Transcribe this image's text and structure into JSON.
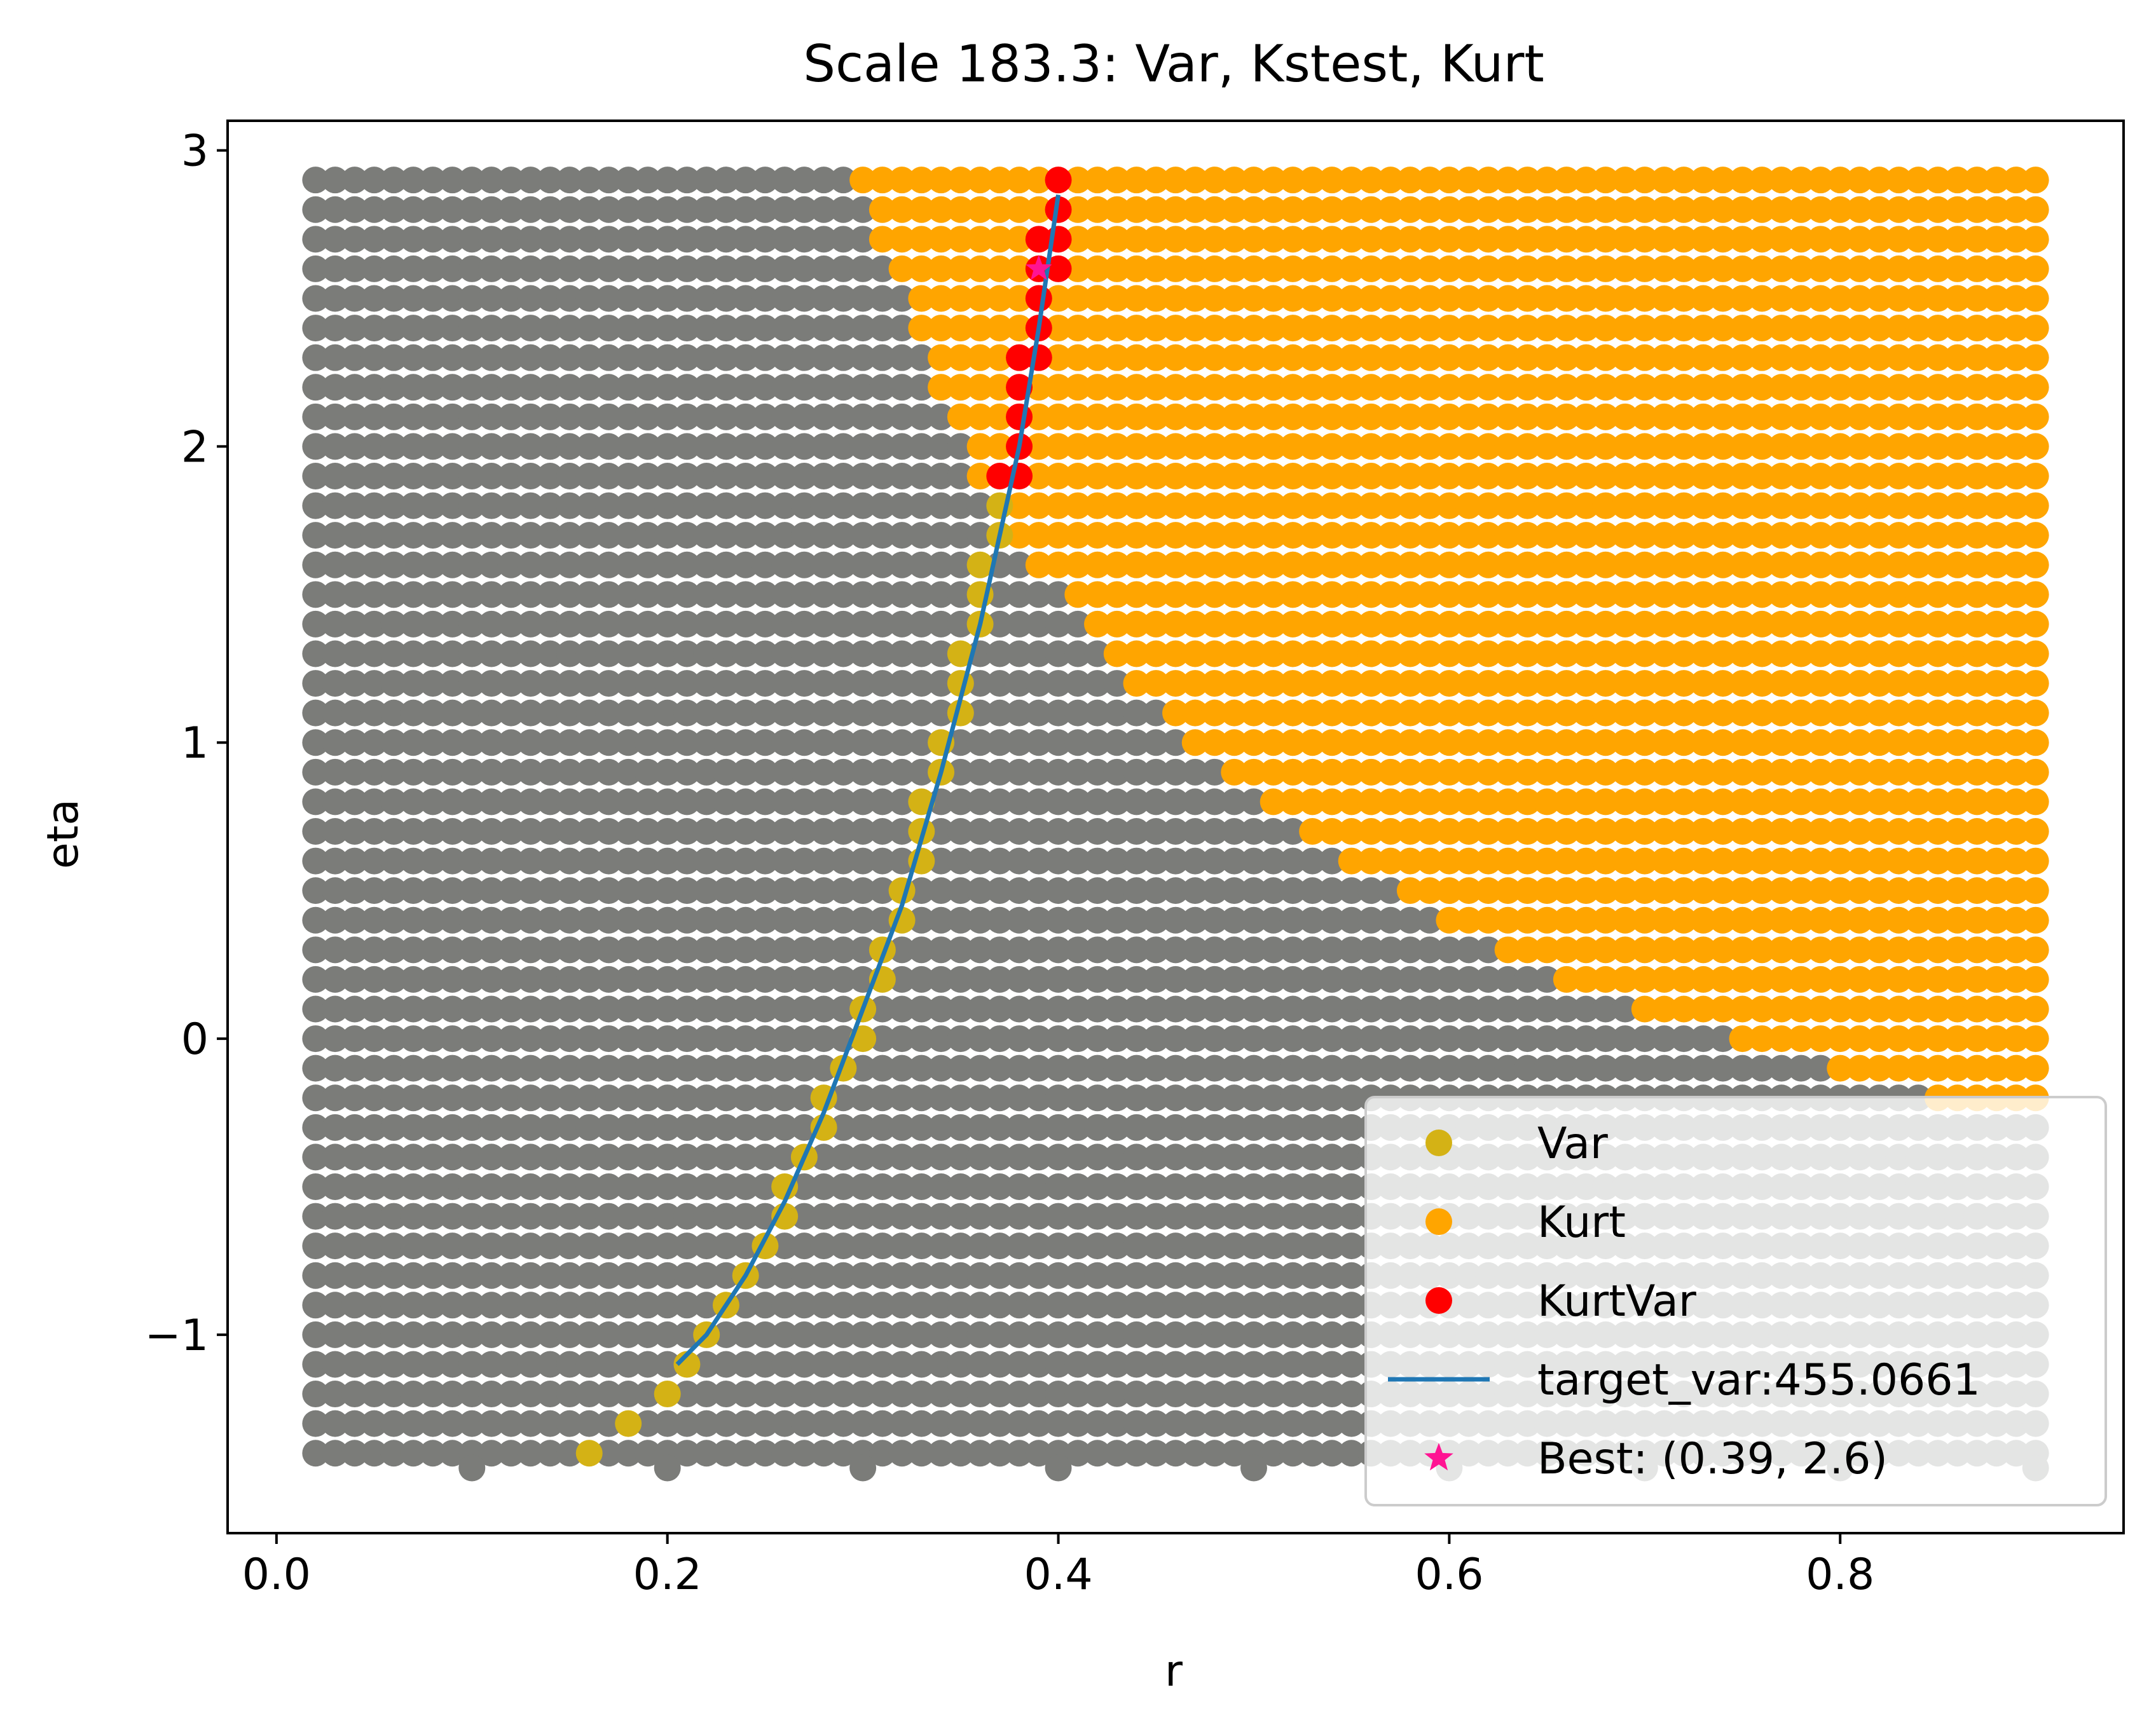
{
  "chart_data": {
    "type": "scatter",
    "title": "Scale 183.3: Var, Kstest, Kurt",
    "xlabel": "r",
    "ylabel": "eta",
    "xlim": [
      -0.025,
      0.945
    ],
    "ylim": [
      -1.67,
      3.1
    ],
    "xticks": [
      0.0,
      0.2,
      0.4,
      0.6,
      0.8
    ],
    "xtick_labels": [
      "0.0",
      "0.2",
      "0.4",
      "0.6",
      "0.8"
    ],
    "yticks": [
      -1,
      0,
      1,
      2,
      3
    ],
    "ytick_labels": [
      "−1",
      "0",
      "1",
      "2",
      "3"
    ],
    "grid": false,
    "legend_position": "bottom-right",
    "grid_points": {
      "r_min": 0.02,
      "r_max": 0.9,
      "r_step": 0.01,
      "eta_min": -1.4,
      "eta_max": 2.9,
      "eta_step": 0.1,
      "extra_bottom_row": {
        "eta": -1.45,
        "r": [
          0.1,
          0.2,
          0.3,
          0.4,
          0.5,
          0.6,
          0.7,
          0.8,
          0.9
        ]
      },
      "base_color": "#7b7c79"
    },
    "kurt_boundary": [
      [
        2.9,
        0.3
      ],
      [
        2.8,
        0.31
      ],
      [
        2.7,
        0.31
      ],
      [
        2.6,
        0.32
      ],
      [
        2.5,
        0.33
      ],
      [
        2.4,
        0.33
      ],
      [
        2.3,
        0.34
      ],
      [
        2.2,
        0.34
      ],
      [
        2.1,
        0.35
      ],
      [
        2.0,
        0.36
      ],
      [
        1.9,
        0.36
      ],
      [
        1.8,
        0.37
      ],
      [
        1.7,
        0.38
      ],
      [
        1.6,
        0.39
      ],
      [
        1.5,
        0.41
      ],
      [
        1.4,
        0.42
      ],
      [
        1.3,
        0.43
      ],
      [
        1.2,
        0.44
      ],
      [
        1.1,
        0.46
      ],
      [
        1.0,
        0.47
      ],
      [
        0.9,
        0.49
      ],
      [
        0.8,
        0.51
      ],
      [
        0.7,
        0.53
      ],
      [
        0.6,
        0.55
      ],
      [
        0.5,
        0.58
      ],
      [
        0.4,
        0.6
      ],
      [
        0.3,
        0.63
      ],
      [
        0.2,
        0.66
      ],
      [
        0.1,
        0.7
      ],
      [
        0.0,
        0.75
      ],
      [
        -0.1,
        0.8
      ],
      [
        -0.2,
        0.85
      ]
    ],
    "series": [
      {
        "name": "Var",
        "marker": "circle",
        "color": "#d4b215",
        "points": [
          [
            0.16,
            -1.4
          ],
          [
            0.18,
            -1.3
          ],
          [
            0.2,
            -1.2
          ],
          [
            0.21,
            -1.1
          ],
          [
            0.22,
            -1.0
          ],
          [
            0.23,
            -0.9
          ],
          [
            0.24,
            -0.8
          ],
          [
            0.25,
            -0.7
          ],
          [
            0.26,
            -0.6
          ],
          [
            0.26,
            -0.5
          ],
          [
            0.27,
            -0.4
          ],
          [
            0.28,
            -0.3
          ],
          [
            0.28,
            -0.2
          ],
          [
            0.29,
            -0.1
          ],
          [
            0.3,
            0.0
          ],
          [
            0.3,
            0.1
          ],
          [
            0.31,
            0.2
          ],
          [
            0.31,
            0.3
          ],
          [
            0.32,
            0.4
          ],
          [
            0.32,
            0.5
          ],
          [
            0.33,
            0.6
          ],
          [
            0.33,
            0.7
          ],
          [
            0.33,
            0.8
          ],
          [
            0.34,
            0.9
          ],
          [
            0.34,
            1.0
          ],
          [
            0.35,
            1.1
          ],
          [
            0.35,
            1.2
          ],
          [
            0.35,
            1.3
          ],
          [
            0.36,
            1.4
          ],
          [
            0.36,
            1.5
          ],
          [
            0.36,
            1.6
          ],
          [
            0.37,
            1.7
          ],
          [
            0.37,
            1.8
          ]
        ]
      },
      {
        "name": "Kurt",
        "marker": "circle",
        "color": "#ffa500"
      },
      {
        "name": "KurtVar",
        "marker": "circle",
        "color": "#ff0000",
        "points": [
          [
            0.37,
            1.9
          ],
          [
            0.38,
            1.9
          ],
          [
            0.38,
            2.0
          ],
          [
            0.38,
            2.1
          ],
          [
            0.38,
            2.2
          ],
          [
            0.38,
            2.3
          ],
          [
            0.39,
            2.3
          ],
          [
            0.39,
            2.4
          ],
          [
            0.39,
            2.5
          ],
          [
            0.39,
            2.6
          ],
          [
            0.4,
            2.6
          ],
          [
            0.39,
            2.7
          ],
          [
            0.4,
            2.7
          ],
          [
            0.4,
            2.8
          ],
          [
            0.4,
            2.9
          ]
        ]
      },
      {
        "name": "target_var:455.0661",
        "marker": "line",
        "color": "#1f77b4",
        "points": [
          [
            0.205,
            -1.1
          ],
          [
            0.22,
            -1.0
          ],
          [
            0.24,
            -0.8
          ],
          [
            0.26,
            -0.55
          ],
          [
            0.28,
            -0.25
          ],
          [
            0.3,
            0.1
          ],
          [
            0.32,
            0.45
          ],
          [
            0.34,
            0.9
          ],
          [
            0.36,
            1.4
          ],
          [
            0.38,
            2.0
          ],
          [
            0.39,
            2.4
          ],
          [
            0.4,
            2.85
          ]
        ]
      },
      {
        "name": "Best: (0.39, 2.6)",
        "marker": "star",
        "color": "#ff1493",
        "points": [
          [
            0.39,
            2.6
          ]
        ]
      }
    ]
  }
}
